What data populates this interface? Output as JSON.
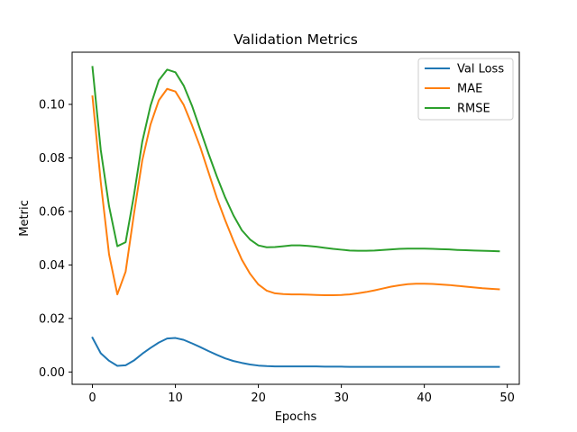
{
  "chart_data": {
    "type": "line",
    "title": "Validation Metrics",
    "xlabel": "Epochs",
    "ylabel": "Metric",
    "xlim": [
      -2.45,
      51.45
    ],
    "ylim": [
      -0.0046,
      0.1195
    ],
    "xticks": [
      0,
      10,
      20,
      30,
      40,
      50
    ],
    "xtick_labels": [
      "0",
      "10",
      "20",
      "30",
      "40",
      "50"
    ],
    "yticks": [
      0.0,
      0.02,
      0.04,
      0.06,
      0.08,
      0.1
    ],
    "ytick_labels": [
      "0.00",
      "0.02",
      "0.04",
      "0.06",
      "0.08",
      "0.10"
    ],
    "grid": false,
    "legend_position": "top-right",
    "x": [
      0,
      1,
      2,
      3,
      4,
      5,
      6,
      7,
      8,
      9,
      10,
      11,
      12,
      13,
      14,
      15,
      16,
      17,
      18,
      19,
      20,
      21,
      22,
      23,
      24,
      25,
      26,
      27,
      28,
      29,
      30,
      31,
      32,
      33,
      34,
      35,
      36,
      37,
      38,
      39,
      40,
      41,
      42,
      43,
      44,
      45,
      46,
      47,
      48,
      49
    ],
    "series": [
      {
        "name": "Val Loss",
        "color": "#1f77b4",
        "values": [
          0.0128,
          0.007,
          0.0042,
          0.0023,
          0.0025,
          0.0043,
          0.0068,
          0.009,
          0.011,
          0.0125,
          0.0127,
          0.012,
          0.0107,
          0.0093,
          0.0078,
          0.0064,
          0.0051,
          0.0041,
          0.0034,
          0.0028,
          0.0024,
          0.0022,
          0.0021,
          0.0021,
          0.0021,
          0.0021,
          0.0021,
          0.0021,
          0.002,
          0.002,
          0.002,
          0.0019,
          0.0019,
          0.0019,
          0.0019,
          0.0019,
          0.0019,
          0.0019,
          0.0019,
          0.0019,
          0.0019,
          0.0019,
          0.0019,
          0.0019,
          0.0019,
          0.0019,
          0.0019,
          0.0019,
          0.0019,
          0.0019
        ]
      },
      {
        "name": "MAE",
        "color": "#ff7f0e",
        "values": [
          0.103,
          0.071,
          0.044,
          0.029,
          0.0375,
          0.059,
          0.079,
          0.0925,
          0.1015,
          0.1058,
          0.1048,
          0.0998,
          0.0922,
          0.084,
          0.0745,
          0.065,
          0.0567,
          0.049,
          0.042,
          0.0367,
          0.0327,
          0.0304,
          0.0294,
          0.0291,
          0.029,
          0.029,
          0.0289,
          0.0288,
          0.0287,
          0.0287,
          0.0288,
          0.029,
          0.0294,
          0.0299,
          0.0305,
          0.0312,
          0.0319,
          0.0324,
          0.0328,
          0.033,
          0.033,
          0.0329,
          0.0327,
          0.0325,
          0.0322,
          0.0319,
          0.0316,
          0.0313,
          0.0311,
          0.0309
        ]
      },
      {
        "name": "RMSE",
        "color": "#2ca02c",
        "values": [
          0.114,
          0.083,
          0.062,
          0.047,
          0.0485,
          0.066,
          0.086,
          0.0995,
          0.109,
          0.113,
          0.112,
          0.107,
          0.0995,
          0.0905,
          0.0815,
          0.073,
          0.0652,
          0.0585,
          0.053,
          0.0495,
          0.0473,
          0.0466,
          0.0467,
          0.047,
          0.0473,
          0.0473,
          0.0471,
          0.0468,
          0.0464,
          0.046,
          0.0457,
          0.0454,
          0.0453,
          0.0453,
          0.0454,
          0.0456,
          0.0458,
          0.046,
          0.0461,
          0.0461,
          0.0461,
          0.046,
          0.0459,
          0.0458,
          0.0456,
          0.0455,
          0.0454,
          0.0453,
          0.0452,
          0.0451
        ]
      }
    ]
  }
}
